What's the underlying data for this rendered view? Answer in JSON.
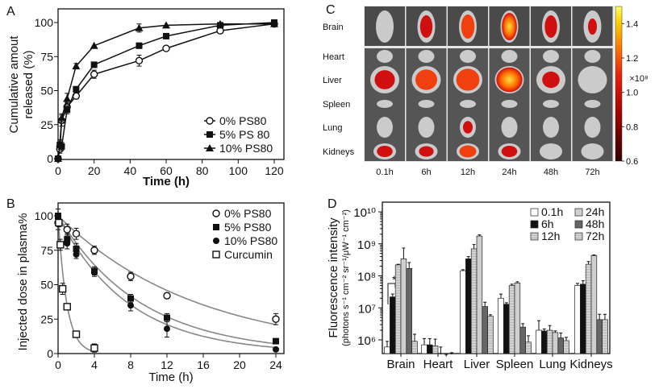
{
  "panels": {
    "a": "A",
    "b": "B",
    "c": "C",
    "d": "D"
  },
  "chart_data": [
    {
      "panel": "A",
      "type": "line",
      "xlabel": "Time (h)",
      "ylabel": [
        "Cumulative amout",
        "released (%)"
      ],
      "xlim": [
        0,
        120
      ],
      "ylim": [
        0,
        100
      ],
      "xticks": [
        "0",
        "20",
        "40",
        "60",
        "80",
        "100",
        "120"
      ],
      "yticks": [
        "0",
        "25",
        "50",
        "75",
        "100"
      ],
      "legend_position": "bottom-right",
      "series": [
        {
          "name": "0% PS80",
          "marker": "open-circle",
          "x": [
            0,
            1,
            2,
            5,
            10,
            20,
            45,
            60,
            90,
            120
          ],
          "y": [
            0,
            7,
            28,
            38,
            46,
            62,
            72,
            81,
            94,
            99
          ],
          "err": [
            0,
            3,
            4,
            3,
            2,
            3,
            4,
            1,
            1,
            1
          ]
        },
        {
          "name": "5% PS 80",
          "marker": "filled-square",
          "x": [
            0,
            1,
            2,
            5,
            10,
            20,
            45,
            60,
            90,
            120
          ],
          "y": [
            0,
            10,
            9,
            36,
            51,
            69,
            83,
            90,
            98,
            100
          ],
          "err": [
            0,
            3,
            3,
            3,
            2,
            2,
            2,
            1,
            1,
            1
          ]
        },
        {
          "name": "10% PS80",
          "marker": "filled-triangle",
          "x": [
            0,
            1,
            2,
            5,
            10,
            20,
            45,
            60,
            90,
            120
          ],
          "y": [
            0,
            11,
            30,
            44,
            68,
            83,
            96,
            98,
            99,
            99
          ],
          "err": [
            0,
            3,
            3,
            4,
            2,
            1,
            3,
            1,
            1,
            1
          ]
        }
      ]
    },
    {
      "panel": "B",
      "type": "scatter",
      "xlabel": "Time (h)",
      "ylabel": "Injected dose in plasma%",
      "xlim": [
        0,
        24
      ],
      "ylim": [
        0,
        100
      ],
      "xticks": [
        "0",
        "4",
        "8",
        "12",
        "16",
        "20",
        "24"
      ],
      "yticks": [
        "0",
        "25",
        "50",
        "75",
        "100"
      ],
      "legend_position": "top-right",
      "series": [
        {
          "name": "0% PS80",
          "marker": "open-circle",
          "x": [
            0,
            1,
            2,
            4,
            8,
            12,
            24
          ],
          "y": [
            95,
            90,
            87,
            75,
            56,
            42,
            25
          ],
          "err": [
            5,
            4,
            4,
            3,
            3,
            2,
            4
          ]
        },
        {
          "name": "5% PS80",
          "marker": "filled-square",
          "x": [
            0,
            1,
            2,
            4,
            8,
            12,
            24
          ],
          "y": [
            100,
            83,
            76,
            60,
            40,
            26,
            9
          ],
          "err": [
            5,
            4,
            4,
            3,
            3,
            3,
            1
          ]
        },
        {
          "name": "10% PS80",
          "marker": "filled-circle",
          "x": [
            0,
            1,
            2,
            4,
            8,
            12,
            24
          ],
          "y": [
            100,
            80,
            72,
            59,
            35,
            18,
            3
          ],
          "err": [
            5,
            4,
            3,
            3,
            4,
            6,
            1
          ]
        },
        {
          "name": "Curcumin",
          "marker": "open-square",
          "x": [
            0.08,
            0.25,
            0.5,
            1,
            2,
            4
          ],
          "y": [
            95,
            79,
            47,
            34,
            14,
            4
          ],
          "err": [
            3,
            4,
            4,
            1,
            1,
            3
          ]
        }
      ]
    },
    {
      "panel": "C",
      "type": "heatmap",
      "rows": [
        "Brain",
        "Heart",
        "Liver",
        "Spleen",
        "Lung",
        "Kidneys"
      ],
      "columns": [
        "0.1h",
        "6h",
        "12h",
        "24h",
        "48h",
        "72h"
      ],
      "colorbar_ticks": [
        "1.4",
        "1.2",
        "1.0",
        "0.8",
        "0.6"
      ],
      "colorbar_range": [
        0.6,
        1.5
      ],
      "colorbar_unit": "×10⁸",
      "colormap": [
        "#300000",
        "#b00000",
        "#e8200a",
        "#ff8000",
        "#ffd000",
        "#ffff60"
      ]
    },
    {
      "panel": "D",
      "type": "bar",
      "ylabel": [
        "Fluorescence intensity",
        "(photons s⁻¹ cm⁻² sr⁻¹/μW⁻¹ cm⁻²)"
      ],
      "yscale": "log",
      "ylim": [
        370000,
        20000000000
      ],
      "yticks": [
        "10⁶",
        "10⁷",
        "10⁸",
        "10⁹",
        "10¹⁰"
      ],
      "categories": [
        "Brain",
        "Heart",
        "Liver",
        "Spleen",
        "Lung",
        "Kidneys"
      ],
      "legend_position": "top-right",
      "annotation": "**",
      "series": [
        {
          "name": "0.1h",
          "fill": "white",
          "values": [
            600000,
            700000,
            145000000,
            20000000,
            2000000,
            50000000
          ],
          "err": [
            300000,
            400000,
            10000000,
            7000000,
            2000000,
            8000000
          ]
        },
        {
          "name": "6h",
          "fill": "black",
          "values": [
            22000000,
            700000,
            340000000,
            13000000,
            1900000,
            55000000
          ],
          "err": [
            5000000,
            400000,
            60000000,
            1500000,
            300000,
            15000000
          ]
        },
        {
          "name": "12h",
          "fill": "light-striped",
          "values": [
            220000000,
            650000,
            700000000,
            50000000,
            2000000,
            230000000
          ],
          "err": [
            10000000,
            400000,
            250000000,
            5000000,
            800000,
            50000000
          ]
        },
        {
          "name": "24h",
          "fill": "light-grey",
          "values": [
            340000000,
            350000,
            1750000000,
            60000000,
            1700000,
            430000000
          ],
          "err": [
            400000000,
            250000,
            150000000,
            5000000,
            200000,
            20000000
          ]
        },
        {
          "name": "48h",
          "fill": "dark-grey",
          "values": [
            170000000,
            300000,
            11000000,
            2500000,
            1150000,
            4300000
          ],
          "err": [
            90000000,
            50000,
            4000000,
            700000,
            500000,
            2000000
          ]
        },
        {
          "name": "72h",
          "fill": "light-striped",
          "values": [
            900000,
            350000,
            5500000,
            850000,
            950000,
            4300000
          ],
          "err": [
            600000,
            50000,
            600000,
            500000,
            250000,
            2000000
          ]
        }
      ]
    }
  ]
}
